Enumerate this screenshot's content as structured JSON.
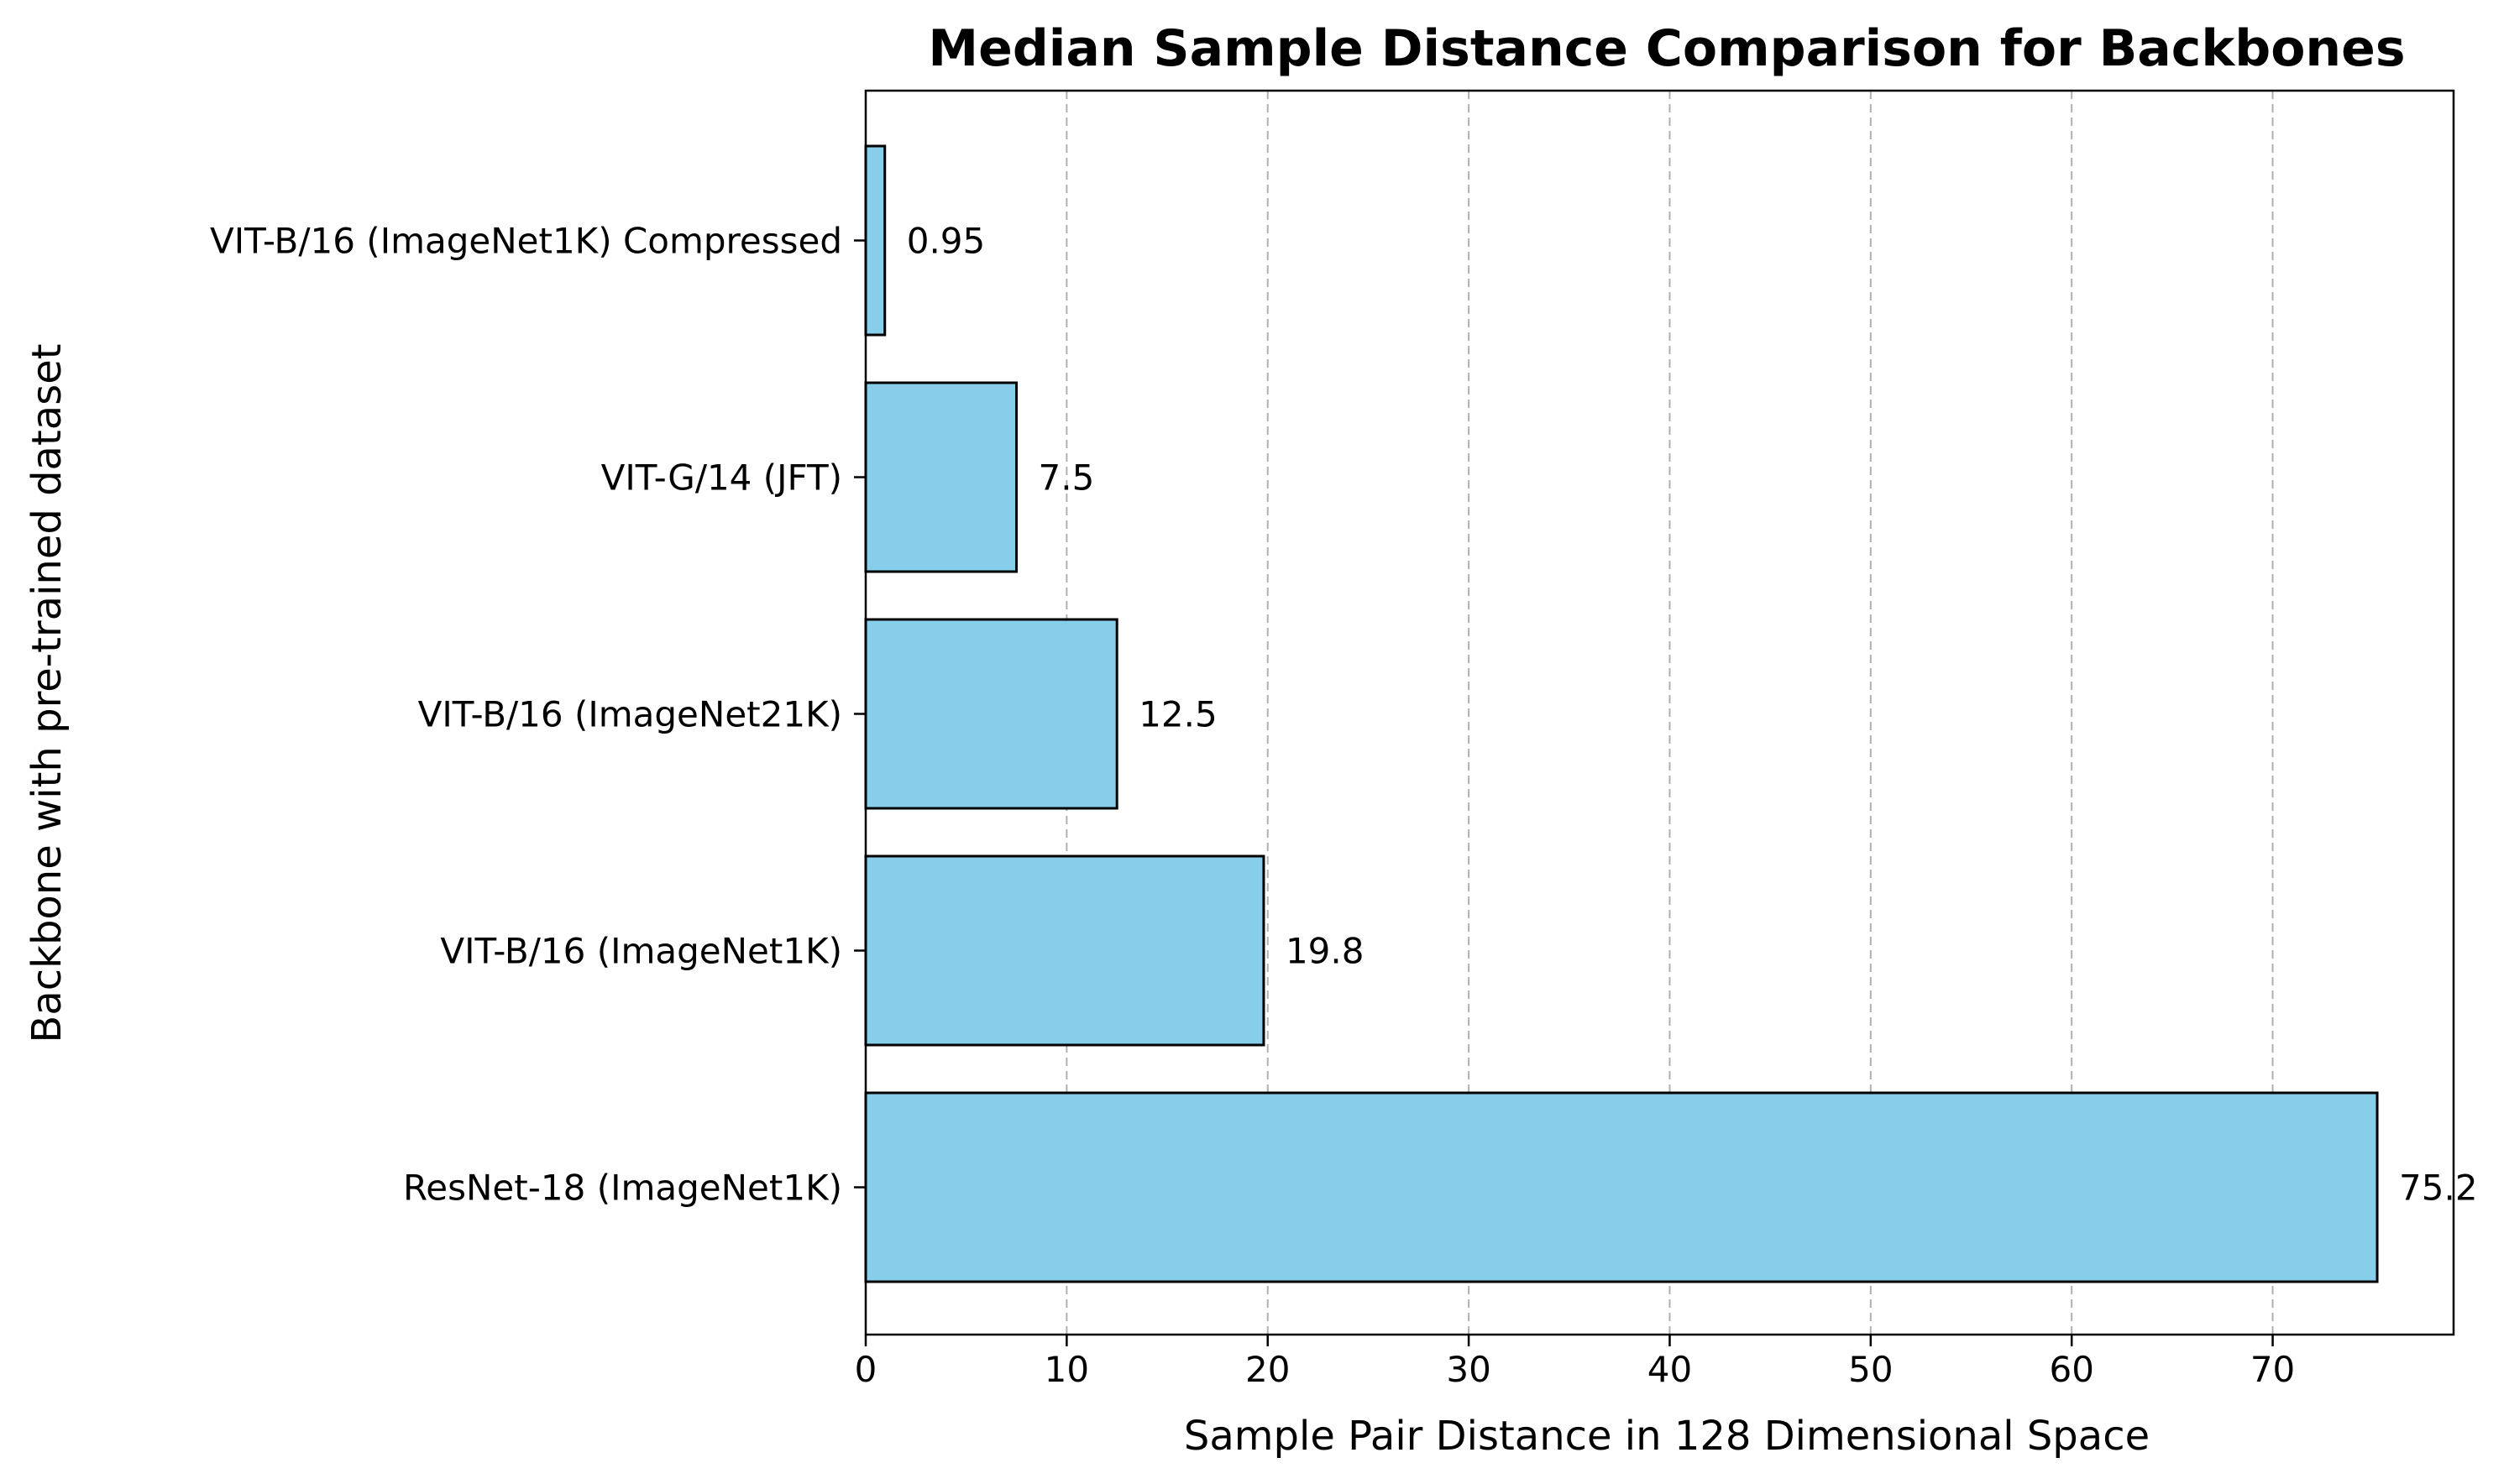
{
  "chart_data": {
    "type": "bar",
    "orientation": "horizontal",
    "title": "Median Sample Distance Comparison for Backbones",
    "xlabel": "Sample Pair Distance in 128 Dimensional Space",
    "ylabel": "Backbone with pre-trained dataset",
    "categories": [
      "VIT-B/16 (ImageNet1K) Compressed",
      "VIT-G/14 (JFT)",
      "VIT-B/16 (ImageNet21K)",
      "VIT-B/16 (ImageNet1K)",
      "ResNet-18 (ImageNet1K)"
    ],
    "values": [
      0.95,
      7.5,
      12.5,
      19.8,
      75.2
    ],
    "data_labels": [
      "0.95",
      "7.5",
      "12.5",
      "19.8",
      "75.2"
    ],
    "xlim": [
      0,
      79
    ],
    "xticks": [
      0,
      10,
      20,
      30,
      40,
      50,
      60,
      70
    ],
    "xtick_labels": [
      "0",
      "10",
      "20",
      "30",
      "40",
      "50",
      "60",
      "70"
    ],
    "grid": "x-axis dashed",
    "legend": "none",
    "bar_color": "#87CEEB",
    "bar_edge_color": "#000000",
    "grid_color": "#b0b0b0"
  }
}
